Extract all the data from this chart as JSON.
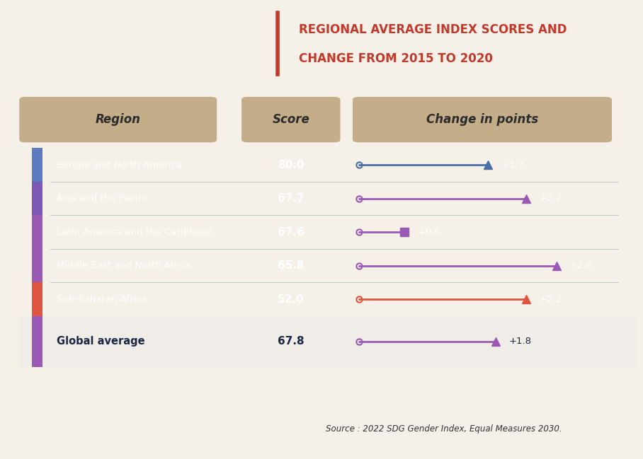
{
  "title_line1": "REGIONAL AVERAGE INDEX SCORES AND",
  "title_line2": "CHANGE FROM 2015 TO 2020",
  "title_color": "#c0392b",
  "bg_color": "#1a2744",
  "global_avg_bg": "#f0ede8",
  "header_bg": "#c4ae8a",
  "regions": [
    "Europe and North America",
    "Asia and the Pacific",
    "Latin America and the Caribbean",
    "Middle East and North Africa",
    "Sub-Saharan Africa"
  ],
  "scores": [
    80.0,
    67.7,
    67.6,
    65.8,
    52.0
  ],
  "changes": [
    1.7,
    2.2,
    0.6,
    2.6,
    2.2
  ],
  "global_region": "Global average",
  "global_score": 67.8,
  "global_change": 1.8,
  "region_colors": [
    "#4a6fa5",
    "#9b59b6",
    "#9b59b6",
    "#9b59b6",
    "#e05540"
  ],
  "global_color": "#9b59b6",
  "side_bar_colors": [
    "#5a7bc0",
    "#7a5ab5",
    "#9b59b6",
    "#9b59b6",
    "#e05540"
  ],
  "marker_shapes": [
    "triangle",
    "triangle",
    "square",
    "triangle",
    "triangle"
  ],
  "global_marker": "triangle",
  "source_text": "Source : 2022 SDG Gender Index, Equal Measures 2030.",
  "col_header_region": "Region",
  "col_header_score": "Score",
  "col_header_change": "Change in points",
  "fig_bg": "#f5f0e8"
}
